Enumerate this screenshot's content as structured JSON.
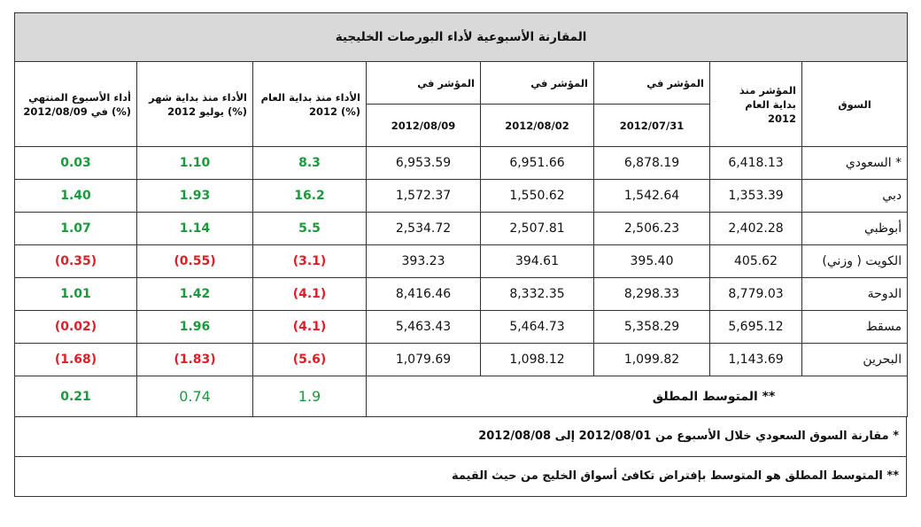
{
  "title": "المقارنة الأسبوعية لأداء البورصات الخليجية",
  "headers": {
    "market": "السوق",
    "index_ytd": "المؤشر منذ بداية العام 2012",
    "index_label": "المؤشر في",
    "date1": "2012/07/31",
    "date2": "2012/08/02",
    "date3": "2012/08/09",
    "perf_ytd": "الأداء منذ بداية العام 2012 (%)",
    "perf_mtd": "الأداء منذ بداية شهر يوليو 2012 (%)",
    "perf_week": "أداء الأسبوع المنتهي في 2012/08/09 (%)"
  },
  "rows": [
    {
      "market": "السعودي *",
      "base": "6,418.13",
      "d1": "6,878.19",
      "d2": "6,951.66",
      "d3": "6,953.59",
      "ytd": "8.3",
      "ytd_s": "pos",
      "mtd": "1.10",
      "mtd_s": "pos",
      "wk": "0.03",
      "wk_s": "pos"
    },
    {
      "market": "دبي",
      "base": "1,353.39",
      "d1": "1,542.64",
      "d2": "1,550.62",
      "d3": "1,572.37",
      "ytd": "16.2",
      "ytd_s": "pos",
      "mtd": "1.93",
      "mtd_s": "pos",
      "wk": "1.40",
      "wk_s": "pos"
    },
    {
      "market": "أبوظبي",
      "base": "2,402.28",
      "d1": "2,506.23",
      "d2": "2,507.81",
      "d3": "2,534.72",
      "ytd": "5.5",
      "ytd_s": "pos",
      "mtd": "1.14",
      "mtd_s": "pos",
      "wk": "1.07",
      "wk_s": "pos"
    },
    {
      "market": "الكويت ( وزني)",
      "base": "405.62",
      "d1": "395.40",
      "d2": "394.61",
      "d3": "393.23",
      "ytd": "(3.1)",
      "ytd_s": "neg",
      "mtd": "(0.55)",
      "mtd_s": "neg",
      "wk": "(0.35)",
      "wk_s": "neg"
    },
    {
      "market": "الدوحة",
      "base": "8,779.03",
      "d1": "8,298.33",
      "d2": "8,332.35",
      "d3": "8,416.46",
      "ytd": "(4.1)",
      "ytd_s": "neg",
      "mtd": "1.42",
      "mtd_s": "pos",
      "wk": "1.01",
      "wk_s": "pos"
    },
    {
      "market": "مسقط",
      "base": "5,695.12",
      "d1": "5,358.29",
      "d2": "5,464.73",
      "d3": "5,463.43",
      "ytd": "(4.1)",
      "ytd_s": "neg",
      "mtd": "1.96",
      "mtd_s": "pos",
      "wk": "(0.02)",
      "wk_s": "neg"
    },
    {
      "market": "البحرين",
      "base": "1,143.69",
      "d1": "1,099.82",
      "d2": "1,098.12",
      "d3": "1,079.69",
      "ytd": "(5.6)",
      "ytd_s": "neg",
      "mtd": "(1.83)",
      "mtd_s": "neg",
      "wk": "(1.68)",
      "wk_s": "neg"
    }
  ],
  "average": {
    "label": "المتوسط المطلق **",
    "ytd": "1.9",
    "mtd": "0.74",
    "wk": "0.21"
  },
  "notes": {
    "note1": "* مقارنة السوق السعودي خلال الأسبوع من 2012/08/01 إلى 2012/08/08",
    "note2": "** المتوسط المطلق هو المتوسط بإفتراض تكافئ أسواق الخليج من حيث القيمة"
  },
  "colors": {
    "positive": "#1a9a3c",
    "negative": "#dd1f2a",
    "title_bg": "#d9d9d9"
  }
}
